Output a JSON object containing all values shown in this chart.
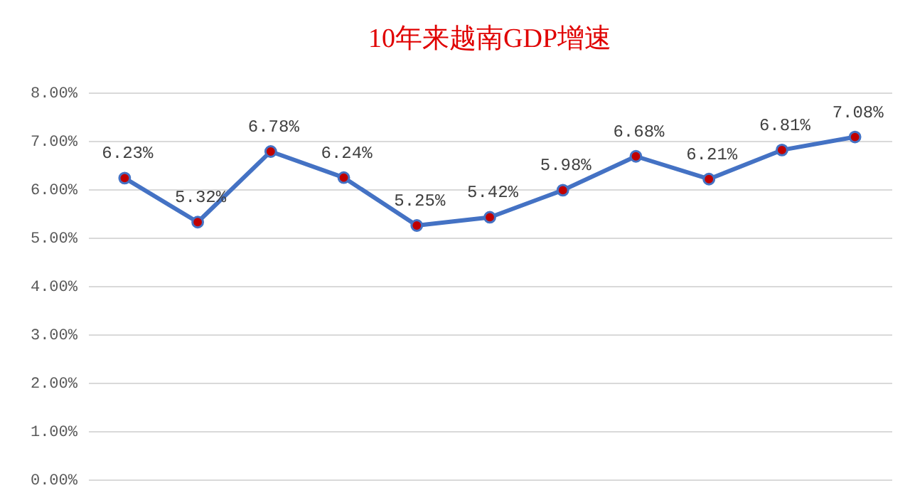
{
  "chart_data": {
    "type": "line",
    "title": "10年来越南GDP增速",
    "categories": [
      null,
      null,
      null,
      null,
      null,
      null,
      null,
      null,
      null,
      null,
      null
    ],
    "series": [
      {
        "color": "#4472c4",
        "values": [
          6.23,
          5.32,
          6.78,
          6.24,
          5.25,
          5.42,
          5.98,
          6.68,
          6.21,
          6.81,
          7.08
        ],
        "value_labels": [
          "6.23%",
          "5.32%",
          "6.78%",
          "6.24%",
          "5.25%",
          "5.42%",
          "5.98%",
          "6.68%",
          "6.21%",
          "6.81%",
          "7.08%"
        ]
      }
    ],
    "ylim": [
      0,
      8
    ],
    "yticks": [
      {
        "value": 0,
        "label": "0.00%"
      },
      {
        "value": 1,
        "label": "1.00%"
      },
      {
        "value": 2,
        "label": "2.00%"
      },
      {
        "value": 3,
        "label": "3.00%"
      },
      {
        "value": 4,
        "label": "4.00%"
      },
      {
        "value": 5,
        "label": "5.00%"
      },
      {
        "value": 6,
        "label": "6.00%"
      },
      {
        "value": 7,
        "label": "7.00%"
      },
      {
        "value": 8,
        "label": "8.00%"
      }
    ],
    "grid": "y",
    "marker": "circle",
    "line_style": "solid",
    "tick_labels": "y"
  }
}
